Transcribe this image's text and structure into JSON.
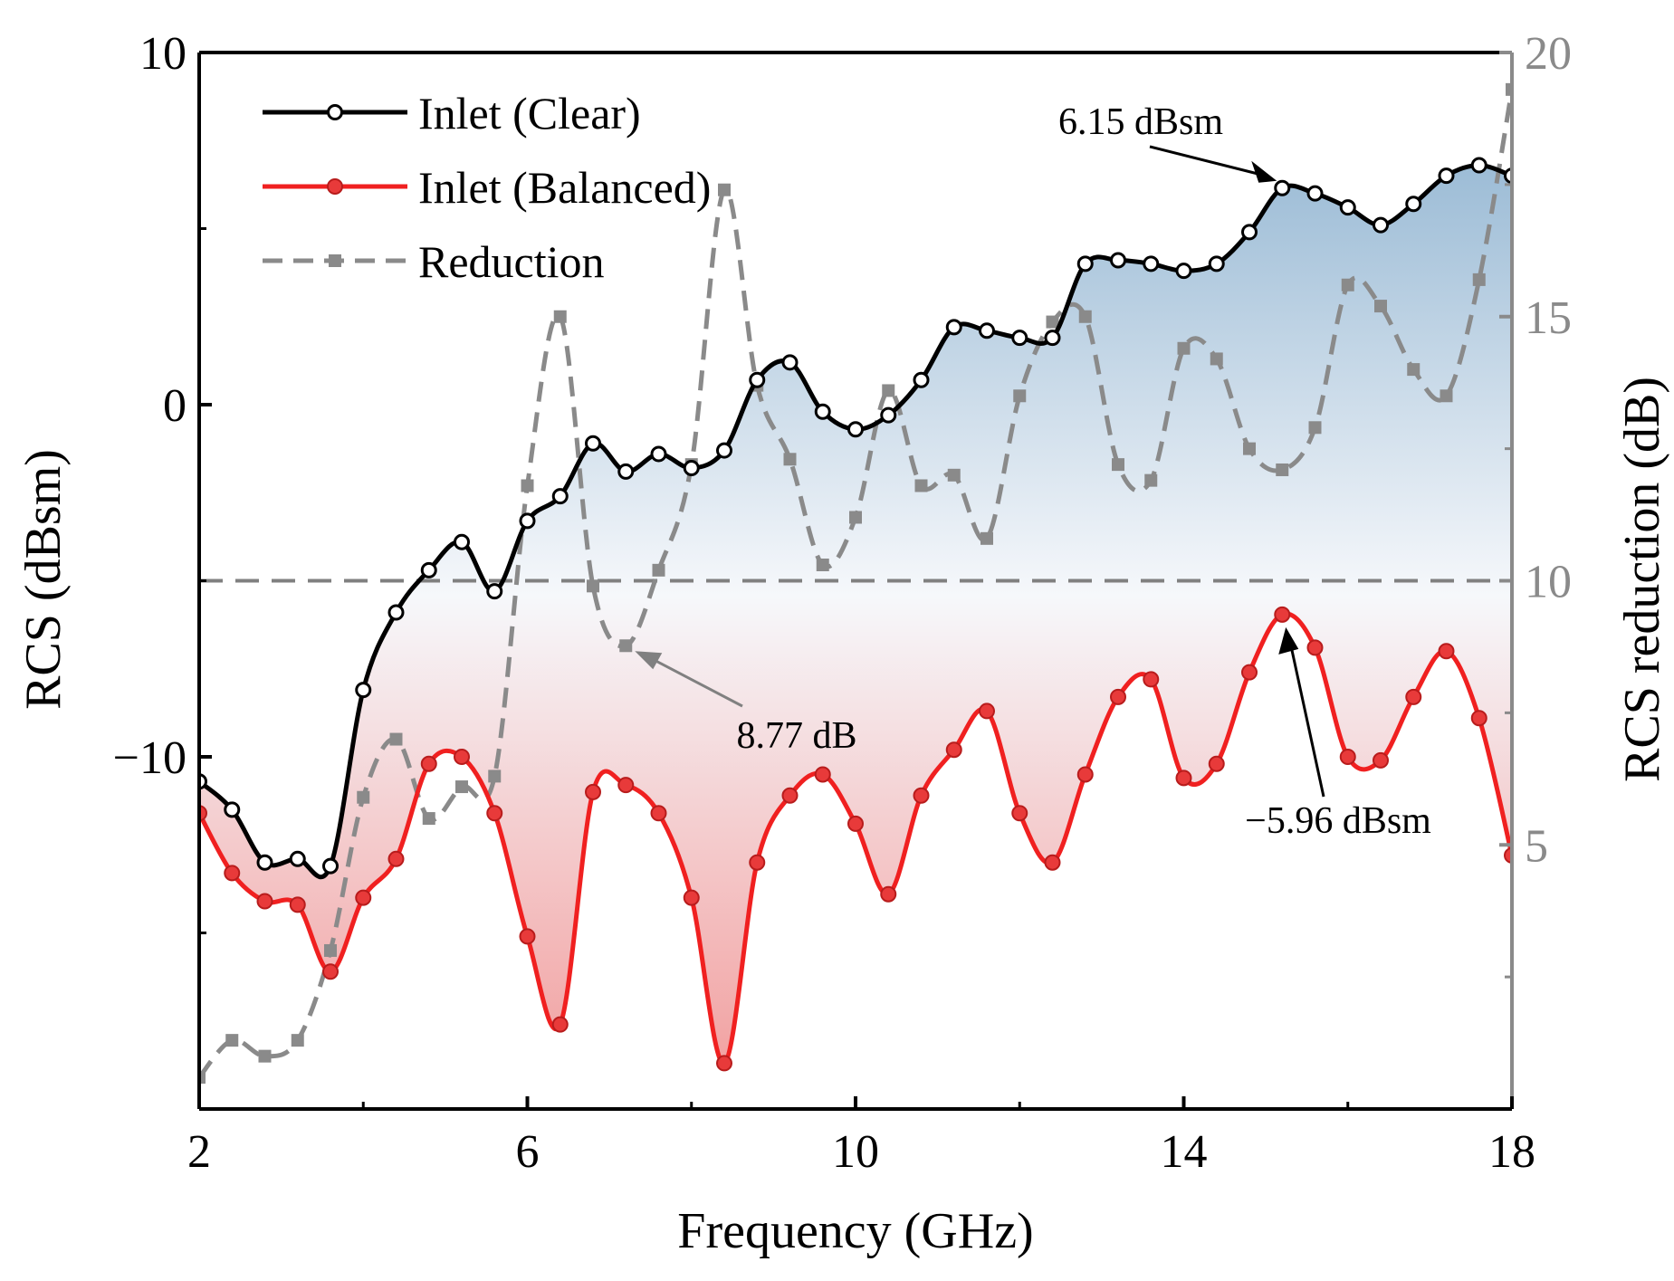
{
  "chart_data": {
    "type": "line",
    "title": "",
    "xlabel": "Frequency (GHz)",
    "ylabel": "RCS (dBsm)",
    "ylabel_right": "RCS reduction (dB)",
    "xlim": [
      2,
      18
    ],
    "ylim": [
      -20,
      10
    ],
    "ylim_right": [
      0,
      20
    ],
    "x_ticks": [
      2,
      6,
      10,
      14,
      18
    ],
    "x_tick_labels": [
      "2",
      "6",
      "10",
      "14",
      "18"
    ],
    "y_ticks": [
      10,
      0,
      -10
    ],
    "y_tick_labels": [
      "10",
      "0",
      "−10"
    ],
    "y_right_ticks": [
      20,
      15,
      10,
      5
    ],
    "y_right_tick_labels": [
      "20",
      "15",
      "10",
      "5"
    ],
    "threshold_right": 10,
    "legend_location": "top-left",
    "x": [
      2.0,
      2.4,
      2.8,
      3.2,
      3.6,
      4.0,
      4.4,
      4.8,
      5.2,
      5.6,
      6.0,
      6.4,
      6.8,
      7.2,
      7.6,
      8.0,
      8.4,
      8.8,
      9.2,
      9.6,
      10.0,
      10.4,
      10.8,
      11.2,
      11.6,
      12.0,
      12.4,
      12.8,
      13.2,
      13.6,
      14.0,
      14.4,
      14.8,
      15.2,
      15.6,
      16.0,
      16.4,
      16.8,
      17.2,
      17.6,
      18.0
    ],
    "series": [
      {
        "name": "Inlet (Clear)",
        "axis": "left",
        "color": "#000000",
        "marker": "open-circle",
        "values": [
          -10.7,
          -11.5,
          -13.0,
          -12.9,
          -13.1,
          -8.1,
          -5.9,
          -4.7,
          -3.9,
          -5.3,
          -3.3,
          -2.6,
          -1.1,
          -1.9,
          -1.4,
          -1.8,
          -1.3,
          0.7,
          1.2,
          -0.2,
          -0.7,
          -0.3,
          0.7,
          2.2,
          2.1,
          1.9,
          1.9,
          4.0,
          4.1,
          4.0,
          3.8,
          4.0,
          4.9,
          6.15,
          6.0,
          5.6,
          5.1,
          5.7,
          6.5,
          6.8,
          6.5
        ]
      },
      {
        "name": "Inlet (Balanced)",
        "axis": "left",
        "color": "#f02020",
        "marker": "filled-circle",
        "values": [
          -11.6,
          -13.3,
          -14.1,
          -14.2,
          -16.1,
          -14.0,
          -12.9,
          -10.2,
          -10.0,
          -11.6,
          -15.1,
          -17.6,
          -11.0,
          -10.8,
          -11.6,
          -14.0,
          -18.7,
          -13.0,
          -11.1,
          -10.5,
          -11.9,
          -13.9,
          -11.1,
          -9.8,
          -8.7,
          -11.6,
          -13.0,
          -10.5,
          -8.3,
          -7.8,
          -10.6,
          -10.2,
          -7.6,
          -5.96,
          -6.9,
          -10.0,
          -10.1,
          -8.3,
          -7.0,
          -8.9,
          -12.8
        ]
      },
      {
        "name": "Reduction",
        "axis": "right",
        "color": "#8a8a8a",
        "marker": "filled-square",
        "style": "dashed",
        "values": [
          0.6,
          1.3,
          1.0,
          1.3,
          3.0,
          5.9,
          7.0,
          5.5,
          6.1,
          6.3,
          11.8,
          15.0,
          9.9,
          8.77,
          10.2,
          12.2,
          17.4,
          13.7,
          12.3,
          10.3,
          11.2,
          13.6,
          11.8,
          12.0,
          10.8,
          13.5,
          14.9,
          15.0,
          12.2,
          11.9,
          14.4,
          14.2,
          12.5,
          12.1,
          12.9,
          15.6,
          15.2,
          14.0,
          13.5,
          15.7,
          19.3
        ]
      }
    ],
    "annotations": [
      {
        "text": "6.15 dBsm",
        "x": 15.2,
        "y": 6.15,
        "axis": "left",
        "anchor": "above-left"
      },
      {
        "text": "8.77 dB",
        "x": 7.2,
        "y": 8.77,
        "axis": "right",
        "anchor": "below-right"
      },
      {
        "text": "−5.96 dBsm",
        "x": 15.2,
        "y": -5.96,
        "axis": "left",
        "anchor": "below"
      }
    ],
    "fill": {
      "between": [
        "Inlet (Clear)",
        "Inlet (Balanced)"
      ],
      "top_color": "#9fbfd8",
      "mid_color": "#ffffff",
      "bottom_color": "#f4a8a8"
    }
  }
}
